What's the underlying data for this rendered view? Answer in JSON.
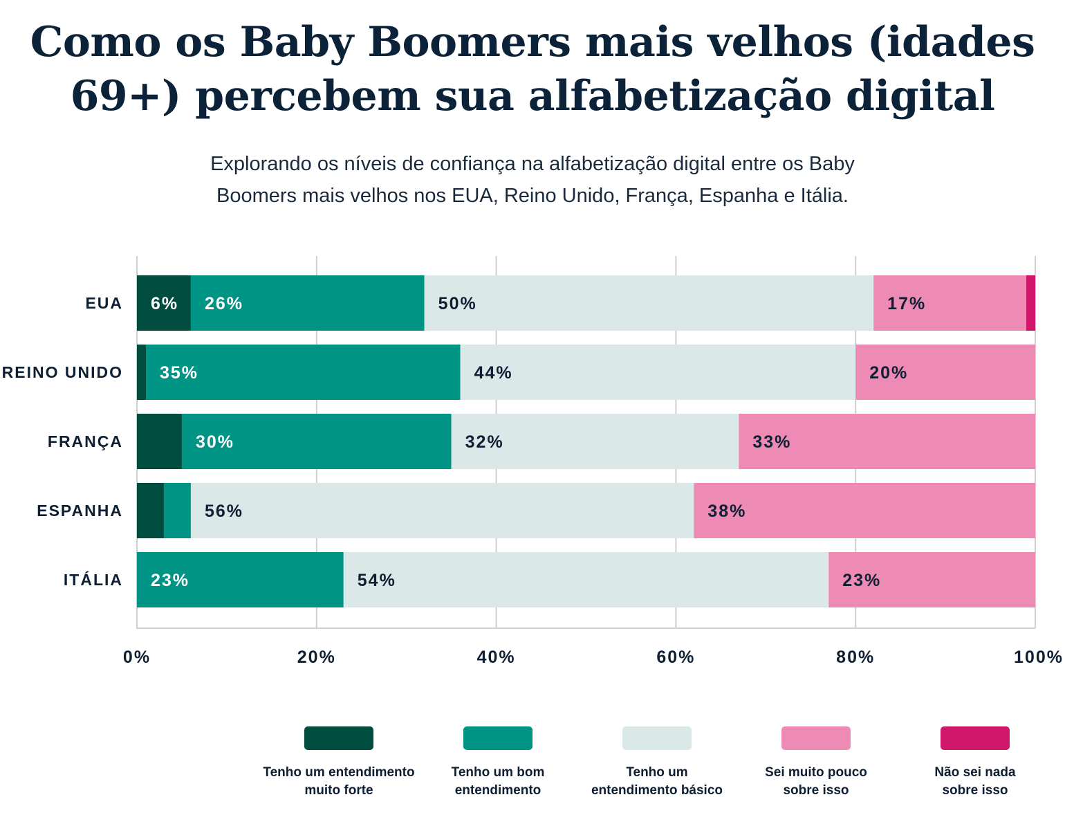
{
  "title": {
    "line1": "Como os Baby Boomers mais velhos (idades",
    "line2": "69+) percebem sua alfabetização digital"
  },
  "subtitle": {
    "line1": "Explorando os níveis de confiança na alfabetização digital entre os Baby",
    "line2": "Boomers mais velhos nos EUA, Reino Unido, França, Espanha e Itália."
  },
  "chart_data": {
    "type": "bar",
    "orientation": "horizontal",
    "stacked": true,
    "categories": [
      "EUA",
      "REINO UNIDO",
      "FRANÇA",
      "ESPANHA",
      "ITÁLIA"
    ],
    "series": [
      {
        "name": "Tenho um entendimento muito forte",
        "color": "#004c3f",
        "values": [
          6,
          1,
          5,
          3,
          0
        ],
        "labels": [
          "6%",
          "",
          "",
          "",
          ""
        ]
      },
      {
        "name": "Tenho um bom entendimento",
        "color": "#009485",
        "values": [
          26,
          35,
          30,
          3,
          23
        ],
        "labels": [
          "26%",
          "35%",
          "30%",
          "",
          "23%"
        ]
      },
      {
        "name": "Tenho um entendimento básico",
        "color": "#dbe8e8",
        "values": [
          50,
          44,
          32,
          56,
          54
        ],
        "labels": [
          "50%",
          "44%",
          "32%",
          "56%",
          "54%"
        ]
      },
      {
        "name": "Sei muito pouco sobre isso",
        "color": "#ee8bb5",
        "values": [
          17,
          20,
          33,
          38,
          23
        ],
        "labels": [
          "17%",
          "20%",
          "33%",
          "38%",
          "23%"
        ]
      },
      {
        "name": "Não sei nada sobre isso",
        "color": "#d1176c",
        "values": [
          1,
          0,
          0,
          0,
          0
        ],
        "labels": [
          "",
          "",
          "",
          "",
          ""
        ]
      }
    ],
    "xlim": [
      0,
      100
    ],
    "xticks": [
      "0%",
      "20%",
      "40%",
      "60%",
      "80%",
      "100%"
    ],
    "grid": true,
    "legend_position": "bottom"
  },
  "legend": {
    "items": [
      {
        "label": "Tenho um entendimento\nmuito forte",
        "color": "#004c3f"
      },
      {
        "label": "Tenho um bom\nentendimento",
        "color": "#009485"
      },
      {
        "label": "Tenho um\nentendimento básico",
        "color": "#dbe8e8"
      },
      {
        "label": "Sei muito pouco\nsobre isso",
        "color": "#ee8bb5"
      },
      {
        "label": "Não sei nada\nsobre isso",
        "color": "#d1176c"
      }
    ]
  }
}
